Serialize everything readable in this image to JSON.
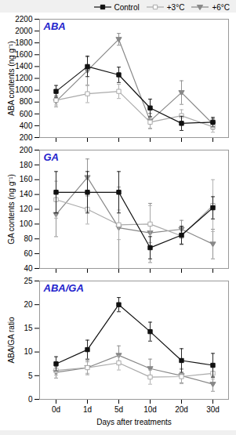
{
  "chart_data": [
    {
      "type": "line",
      "title": "ABA",
      "ylabel": "ABA contents (ng g⁻¹)",
      "categories": [
        null,
        null,
        null,
        null,
        null,
        null
      ],
      "ylim": [
        200,
        2200
      ],
      "yticks": [
        200,
        400,
        600,
        800,
        1000,
        1200,
        1400,
        1600,
        1800,
        2000,
        2200
      ],
      "legend": "upper right",
      "series": [
        {
          "name": "Control",
          "color": "#111111",
          "marker": "square",
          "values": [
            980,
            1400,
            1260,
            700,
            440,
            460
          ],
          "errors": [
            100,
            170,
            130,
            150,
            120,
            80
          ]
        },
        {
          "name": "+3°C",
          "color": "#aaaaaa",
          "marker": "square_open",
          "values": [
            830,
            940,
            980,
            460,
            570,
            380
          ],
          "errors": [
            80,
            150,
            120,
            100,
            100,
            90
          ]
        },
        {
          "name": "+6°C",
          "color": "#888888",
          "marker": "triangle_down",
          "values": [
            810,
            1330,
            1860,
            480,
            960,
            430
          ],
          "errors": [
            90,
            250,
            100,
            130,
            200,
            90
          ]
        }
      ]
    },
    {
      "type": "line",
      "title": "GA",
      "ylabel": "GA contents (ng g⁻¹)",
      "categories": [
        null,
        null,
        null,
        null,
        null,
        null
      ],
      "ylim": [
        40,
        200
      ],
      "yticks": [
        40,
        60,
        80,
        100,
        120,
        140,
        160,
        180,
        200
      ],
      "series": [
        {
          "name": "Control",
          "color": "#111111",
          "marker": "square",
          "values": [
            143,
            143,
            143,
            68,
            85,
            122
          ],
          "errors": [
            28,
            28,
            28,
            15,
            12,
            15
          ]
        },
        {
          "name": "+3°C",
          "color": "#aaaaaa",
          "marker": "square_open",
          "values": [
            133,
            120,
            99,
            100,
            84,
            125
          ],
          "errors": [
            25,
            20,
            20,
            25,
            12,
            35
          ]
        },
        {
          "name": "+6°C",
          "color": "#888888",
          "marker": "triangle_down",
          "values": [
            113,
            163,
            95,
            88,
            93,
            73
          ],
          "errors": [
            30,
            25,
            55,
            40,
            12,
            20
          ]
        }
      ]
    },
    {
      "type": "line",
      "title": "ABA/GA",
      "ylabel": "ABA/GA ratio",
      "xlabel": "Days after treatments",
      "categories": [
        "0d",
        "1d",
        "5d",
        "10d",
        "20d",
        "30d"
      ],
      "ylim": [
        0,
        25
      ],
      "yticks": [
        0,
        5,
        10,
        15,
        20,
        25
      ],
      "series": [
        {
          "name": "Control",
          "color": "#111111",
          "marker": "square",
          "values": [
            7.5,
            10.5,
            20.0,
            14.3,
            8.2,
            7.2
          ],
          "errors": [
            1.5,
            2.0,
            1.5,
            2.0,
            2.5,
            2.5
          ]
        },
        {
          "name": "+3°C",
          "color": "#aaaaaa",
          "marker": "square_open",
          "values": [
            6.1,
            6.7,
            7.7,
            4.7,
            4.8,
            5.5
          ],
          "errors": [
            1.0,
            1.2,
            1.5,
            1.5,
            1.5,
            1.2
          ]
        },
        {
          "name": "+6°C",
          "color": "#888888",
          "marker": "triangle_down",
          "values": [
            5.7,
            6.7,
            9.3,
            6.5,
            5.0,
            3.2
          ],
          "errors": [
            1.2,
            1.5,
            2.0,
            2.0,
            1.5,
            1.5
          ]
        }
      ]
    }
  ]
}
